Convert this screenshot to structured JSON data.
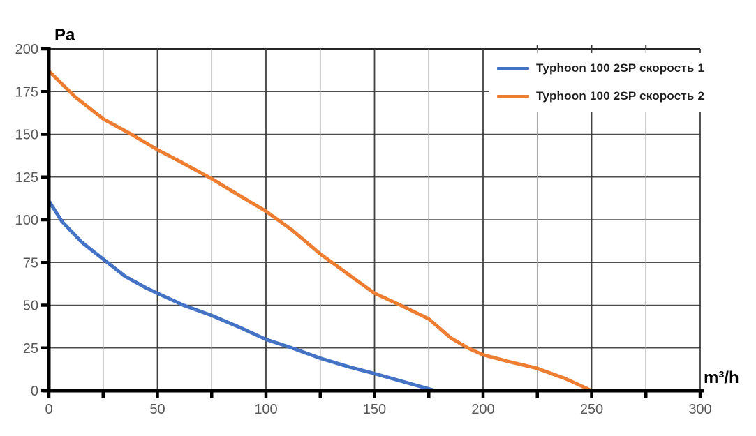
{
  "units": {
    "y": "Pa",
    "x": "m³/h"
  },
  "legend": {
    "items": [
      {
        "label": "Typhoon 100 2SP скорость 1",
        "color": "#4472C4"
      },
      {
        "label": "Typhoon 100 2SP скорость 2",
        "color": "#ED7D31"
      }
    ],
    "position": "top-right-inside",
    "border": "none"
  },
  "colors": {
    "axis": "#000000",
    "tick_label": "#595959",
    "grid_major": "#404040",
    "grid_minor": "#a8a8a8",
    "grid_horizontal": "#4d4d4d",
    "series1": "#4472C4",
    "series2": "#ED7D31",
    "background": "#ffffff"
  },
  "chart_data": {
    "type": "line",
    "title": "",
    "xlabel": "m³/h",
    "ylabel": "Pa",
    "xlim": [
      0,
      300
    ],
    "ylim": [
      0,
      200
    ],
    "grid": "vertical every 25 (minor lighter, major darker), horizontal every 25",
    "legend_position": "top-right inside, no frame",
    "x_ticks_all": [
      0,
      25,
      50,
      75,
      100,
      125,
      150,
      175,
      200,
      225,
      250,
      275,
      300
    ],
    "x_ticks_labeled": [
      0,
      50,
      100,
      150,
      200,
      250,
      300
    ],
    "y_ticks": [
      0,
      25,
      50,
      75,
      100,
      125,
      150,
      175,
      200
    ],
    "top_edge_minor_ticks": [
      225,
      250,
      275
    ],
    "series": [
      {
        "name": "Typhoon 100 2SP скорость 1",
        "color": "#4472C4",
        "points": [
          [
            0,
            111
          ],
          [
            6,
            99
          ],
          [
            15,
            87
          ],
          [
            25,
            77
          ],
          [
            35,
            67
          ],
          [
            45,
            60
          ],
          [
            50,
            57
          ],
          [
            62,
            50
          ],
          [
            75,
            44
          ],
          [
            88,
            37
          ],
          [
            100,
            30
          ],
          [
            112,
            25
          ],
          [
            125,
            19
          ],
          [
            138,
            14
          ],
          [
            150,
            10
          ],
          [
            164,
            5
          ],
          [
            178,
            0
          ]
        ]
      },
      {
        "name": "Typhoon 100 2SP скорость 2",
        "color": "#ED7D31",
        "points": [
          [
            0,
            187
          ],
          [
            12,
            172
          ],
          [
            25,
            159
          ],
          [
            38,
            150
          ],
          [
            50,
            141
          ],
          [
            62,
            133
          ],
          [
            75,
            124
          ],
          [
            88,
            114
          ],
          [
            100,
            105
          ],
          [
            112,
            94
          ],
          [
            125,
            80
          ],
          [
            138,
            68
          ],
          [
            150,
            57
          ],
          [
            162,
            50
          ],
          [
            175,
            42
          ],
          [
            185,
            31
          ],
          [
            193,
            25
          ],
          [
            200,
            21
          ],
          [
            212,
            17
          ],
          [
            225,
            13
          ],
          [
            238,
            7
          ],
          [
            250,
            0
          ]
        ]
      }
    ]
  }
}
